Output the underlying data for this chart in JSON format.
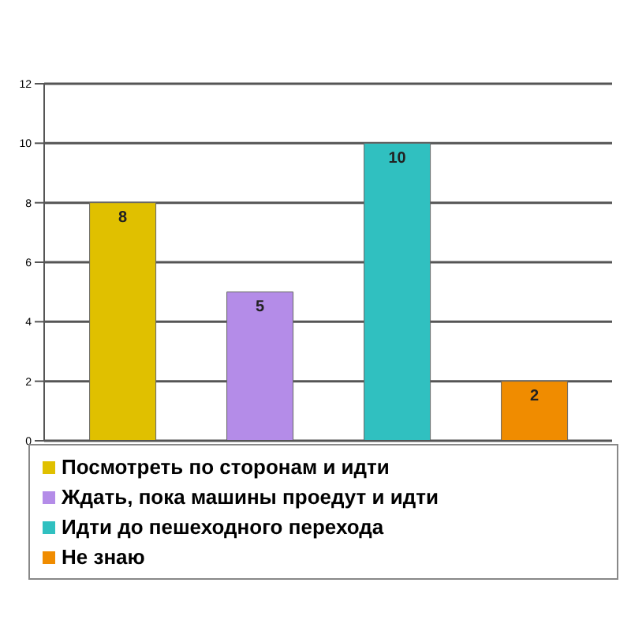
{
  "chart_data": {
    "type": "bar",
    "categories": [
      null
    ],
    "series": [
      {
        "name": "Посмотреть по сторонам и идти",
        "color": "#e0c000",
        "values": [
          8
        ]
      },
      {
        "name": "Ждать, пока машины проедут и идти",
        "color": "#b48ce8",
        "values": [
          5
        ]
      },
      {
        "name": "Идти до пешеходного перехода",
        "color": "#30c0c0",
        "values": [
          10
        ]
      },
      {
        "name": "Не знаю",
        "color": "#f08c00",
        "values": [
          2
        ]
      }
    ],
    "ylim": [
      0,
      12
    ],
    "yticks": [
      0,
      2,
      4,
      6,
      8,
      10,
      12
    ],
    "grid": "y",
    "legend": "bottom",
    "data_labels": true,
    "tick_labels": "y"
  }
}
